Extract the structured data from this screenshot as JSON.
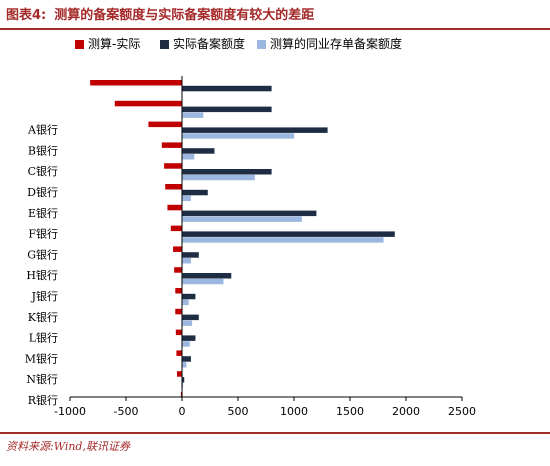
{
  "header": {
    "figure_label": "图表4:",
    "title_text": "测算的备案额度与实际备案额度有较大的差距"
  },
  "source_note": "资料来源:Wind,联讯证券",
  "chart_data": {
    "type": "bar",
    "orientation": "horizontal",
    "title": "图表4: 测算的备案额度与实际备案额度有较大的差距",
    "categories": [
      "",
      "",
      "A银行",
      "B银行",
      "C银行",
      "D银行",
      "E银行",
      "F银行",
      "G银行",
      "H银行",
      "J银行",
      "K银行",
      "L银行",
      "M银行",
      "N银行",
      "R银行"
    ],
    "series": [
      {
        "name": "测算-实际",
        "color": "#c00000",
        "values": [
          -820,
          -600,
          -300,
          -180,
          -160,
          -150,
          -130,
          -100,
          -80,
          -70,
          -60,
          -60,
          -55,
          -50,
          -45,
          -10
        ]
      },
      {
        "name": "实际备案额度",
        "color": "#1f2d44",
        "values": [
          800,
          800,
          1300,
          290,
          800,
          230,
          1200,
          1900,
          150,
          440,
          120,
          150,
          120,
          80,
          20,
          0
        ]
      },
      {
        "name": "测算的同业存单备案额度",
        "color": "#9db8e0",
        "values": [
          0,
          190,
          1000,
          110,
          650,
          80,
          1070,
          1800,
          80,
          370,
          60,
          90,
          70,
          40,
          10,
          0
        ]
      }
    ],
    "xlim": [
      -1000,
      2500
    ],
    "xticks": [
      -1000,
      -500,
      0,
      500,
      1000,
      1500,
      2000,
      2500
    ],
    "xlabel": "",
    "ylabel": "",
    "legend_position": "top",
    "grid": false
  }
}
